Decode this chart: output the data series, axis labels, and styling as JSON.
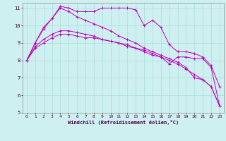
{
  "xlabel": "Windchill (Refroidissement éolien,°C)",
  "bg_color": "#cff0f0",
  "grid_color": "#aadddd",
  "line_color": "#bb00bb",
  "xlim": [
    -0.5,
    23.5
  ],
  "ylim": [
    5,
    11.3
  ],
  "xticks": [
    0,
    1,
    2,
    3,
    4,
    5,
    6,
    7,
    8,
    9,
    10,
    11,
    12,
    13,
    14,
    15,
    16,
    17,
    18,
    19,
    20,
    21,
    22,
    23
  ],
  "yticks": [
    5,
    6,
    7,
    8,
    9,
    10,
    11
  ],
  "lines": [
    [
      8.0,
      9.0,
      9.9,
      10.4,
      11.1,
      11.0,
      10.8,
      10.8,
      10.8,
      11.0,
      11.0,
      11.0,
      11.0,
      10.9,
      10.0,
      10.3,
      9.9,
      8.9,
      8.5,
      8.5,
      8.4,
      8.2,
      7.7,
      6.5
    ],
    [
      8.0,
      9.0,
      9.8,
      10.4,
      11.0,
      10.8,
      10.5,
      10.3,
      10.1,
      9.9,
      9.7,
      9.4,
      9.2,
      9.0,
      8.7,
      8.5,
      8.3,
      8.1,
      7.9,
      7.6,
      7.0,
      6.9,
      6.5,
      5.4
    ],
    [
      8.0,
      8.8,
      9.2,
      9.5,
      9.7,
      9.7,
      9.6,
      9.5,
      9.4,
      9.2,
      9.1,
      9.0,
      8.8,
      8.7,
      8.5,
      8.3,
      8.2,
      8.0,
      7.8,
      7.5,
      7.2,
      6.9,
      6.5,
      5.4
    ],
    [
      8.0,
      8.7,
      9.0,
      9.3,
      9.5,
      9.5,
      9.4,
      9.3,
      9.3,
      9.2,
      9.1,
      9.0,
      8.9,
      8.7,
      8.6,
      8.4,
      8.2,
      7.8,
      8.2,
      8.2,
      8.1,
      8.1,
      7.6,
      5.4
    ]
  ]
}
